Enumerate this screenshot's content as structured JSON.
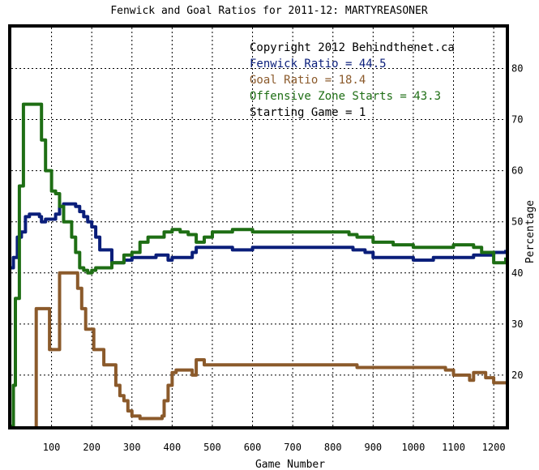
{
  "chart_data": {
    "type": "line",
    "title": "Fenwick and Goal Ratios for 2011-12: MARTYREASONER",
    "xlabel": "Game Number",
    "ylabel": "Percentage",
    "xlim": [
      0,
      1230
    ],
    "ylim": [
      10,
      88
    ],
    "x_ticks": [
      100,
      200,
      300,
      400,
      500,
      600,
      700,
      800,
      900,
      1000,
      1100,
      1200
    ],
    "y_ticks": [
      20,
      30,
      40,
      50,
      60,
      70,
      80
    ],
    "grid": true,
    "annotations": [
      {
        "text": "Copyright 2012 Behindthenet.ca",
        "color": "#000000"
      },
      {
        "text": "Fenwick Ratio = 44.5",
        "color": "#0a1e7a"
      },
      {
        "text": "Goal Ratio = 18.4",
        "color": "#8b5a2b"
      },
      {
        "text": "Offensive Zone Starts = 43.3",
        "color": "#1e6e14"
      },
      {
        "text": "Starting Game = 1",
        "color": "#000000"
      }
    ],
    "series": [
      {
        "color": "#0a1e7a",
        "x": [
          0,
          5,
          15,
          25,
          35,
          45,
          50,
          70,
          75,
          85,
          100,
          110,
          120,
          130,
          140,
          160,
          170,
          180,
          190,
          200,
          210,
          220,
          240,
          250,
          280,
          300,
          330,
          360,
          380,
          390,
          400,
          440,
          450,
          460,
          480,
          550,
          600,
          700,
          800,
          850,
          880,
          900,
          950,
          1000,
          1050,
          1100,
          1150,
          1200,
          1230
        ],
        "y": [
          41,
          43,
          47,
          48,
          51,
          51.5,
          51.5,
          51,
          50,
          50.5,
          50.5,
          51.5,
          53,
          53.5,
          53.5,
          53,
          52,
          51,
          50,
          49,
          47,
          44.5,
          44.5,
          42,
          42.5,
          43,
          43,
          43.5,
          43.5,
          42.5,
          43,
          43,
          44,
          45,
          45,
          44.5,
          45,
          45,
          45,
          44.5,
          44,
          43,
          43,
          42.5,
          43,
          43,
          43.5,
          44,
          44.5
        ]
      },
      {
        "color": "#8b5a2b",
        "x": [
          0,
          60,
          62,
          90,
          95,
          110,
          120,
          140,
          160,
          165,
          175,
          185,
          205,
          220,
          230,
          260,
          270,
          280,
          290,
          300,
          320,
          360,
          375,
          380,
          390,
          400,
          410,
          440,
          450,
          460,
          480,
          550,
          600,
          700,
          800,
          850,
          860,
          900,
          1000,
          1050,
          1080,
          1100,
          1140,
          1150,
          1180,
          1200,
          1230
        ],
        "y": [
          5,
          5,
          33,
          33,
          25,
          25,
          40,
          40,
          40,
          37,
          33,
          29,
          25,
          25,
          22,
          18,
          16,
          15,
          13,
          12,
          11.5,
          11.5,
          12,
          15,
          18,
          20.5,
          21,
          21,
          20,
          23,
          22,
          22,
          22,
          22,
          22,
          22,
          21.5,
          21.5,
          21.5,
          21.5,
          21,
          20,
          19,
          20.5,
          19.5,
          18.5,
          18.5
        ]
      },
      {
        "color": "#1e6e14",
        "x": [
          0,
          5,
          10,
          20,
          30,
          45,
          70,
          75,
          85,
          100,
          110,
          120,
          130,
          150,
          160,
          170,
          180,
          190,
          200,
          210,
          220,
          240,
          250,
          280,
          300,
          320,
          340,
          360,
          380,
          400,
          420,
          440,
          460,
          480,
          500,
          550,
          600,
          650,
          700,
          800,
          840,
          860,
          900,
          950,
          1000,
          1050,
          1100,
          1150,
          1170,
          1200,
          1230
        ],
        "y": [
          10,
          18,
          35,
          57,
          73,
          73,
          73,
          66,
          60,
          56,
          55.5,
          53,
          50,
          47,
          44,
          41,
          40.5,
          40,
          40.5,
          41,
          41,
          41,
          42,
          43.5,
          44,
          46,
          47,
          47,
          48,
          48.5,
          48,
          47.5,
          46,
          47,
          48,
          48.5,
          48,
          48,
          48,
          48,
          47.5,
          47,
          46,
          45.5,
          45,
          45,
          45.5,
          45,
          44,
          42,
          43
        ]
      }
    ]
  }
}
